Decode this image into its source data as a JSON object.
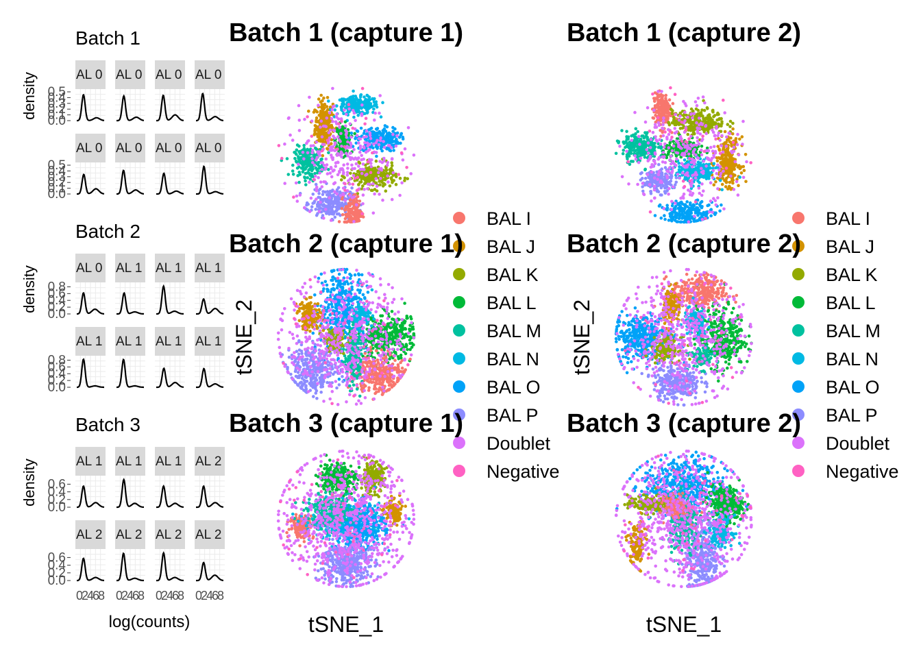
{
  "colors": {
    "BAL I": "#F8766D",
    "BAL J": "#D39200",
    "BAL K": "#93AA00",
    "BAL L": "#00BA38",
    "BAL M": "#00C19F",
    "BAL N": "#00B9E3",
    "BAL O": "#00A2F8",
    "BAL P": "#8C8CFF",
    "Doublet": "#DB72FB",
    "Negative": "#FF61C3"
  },
  "chart_data": [
    {
      "type": "line",
      "title": "Batch 1",
      "ylabel": "density",
      "xlabel": "",
      "panel_strips": [
        "AL 0",
        "AL 0",
        "AL 0",
        "AL 0",
        "AL 0",
        "AL 0",
        "AL 0",
        "AL 0"
      ],
      "y_ticks": [
        "0.0",
        "0.1",
        "0.2",
        "0.3",
        "0.4",
        "0.5"
      ],
      "x_ticks": [],
      "ylim": [
        0,
        0.5
      ],
      "xlim": [
        0,
        9
      ],
      "curves": [
        {
          "peak_x": 2.2,
          "peak_y": 0.45,
          "second_x": 6.5,
          "second_y": 0.05
        },
        {
          "peak_x": 2.4,
          "peak_y": 0.43,
          "second_x": 6.5,
          "second_y": 0.06
        },
        {
          "peak_x": 2.3,
          "peak_y": 0.44,
          "second_x": 6.2,
          "second_y": 0.1
        },
        {
          "peak_x": 2.2,
          "peak_y": 0.47,
          "second_x": 6.3,
          "second_y": 0.07
        },
        {
          "peak_x": 2.3,
          "peak_y": 0.34,
          "second_x": 6.3,
          "second_y": 0.09
        },
        {
          "peak_x": 2.3,
          "peak_y": 0.41,
          "second_x": 6.3,
          "second_y": 0.07
        },
        {
          "peak_x": 2.5,
          "peak_y": 0.36,
          "second_x": 6.6,
          "second_y": 0.05
        },
        {
          "peak_x": 2.6,
          "peak_y": 0.48,
          "second_x": 6.4,
          "second_y": 0.04
        }
      ]
    },
    {
      "type": "line",
      "title": "Batch 2",
      "ylabel": "density",
      "xlabel": "",
      "panel_strips": [
        "AL 0",
        "AL 1",
        "AL 1",
        "AL 1",
        "AL 1",
        "AL 1",
        "AL 1",
        "AL 1"
      ],
      "y_ticks": [
        "0.0",
        "0.2",
        "0.4",
        "0.6",
        "0.8"
      ],
      "x_ticks": [],
      "ylim": [
        0,
        0.85
      ],
      "xlim": [
        0,
        9
      ],
      "curves": [
        {
          "peak_x": 2.2,
          "peak_y": 0.62,
          "second_x": 6.0,
          "second_y": 0.14
        },
        {
          "peak_x": 2.5,
          "peak_y": 0.62,
          "second_x": 6.0,
          "second_y": 0.06
        },
        {
          "peak_x": 2.4,
          "peak_y": 0.82,
          "second_x": 6.0,
          "second_y": 0.08
        },
        {
          "peak_x": 2.5,
          "peak_y": 0.44,
          "second_x": 6.3,
          "second_y": 0.16
        },
        {
          "peak_x": 2.2,
          "peak_y": 0.83,
          "second_x": 6.0,
          "second_y": 0.04
        },
        {
          "peak_x": 2.3,
          "peak_y": 0.82,
          "second_x": 6.0,
          "second_y": 0.04
        },
        {
          "peak_x": 2.5,
          "peak_y": 0.56,
          "second_x": 6.2,
          "second_y": 0.14
        },
        {
          "peak_x": 2.6,
          "peak_y": 0.55,
          "second_x": 6.3,
          "second_y": 0.1
        }
      ]
    },
    {
      "type": "line",
      "title": "Batch 3",
      "ylabel": "density",
      "xlabel": "log(counts)",
      "panel_strips": [
        "AL 1",
        "AL 1",
        "AL 1",
        "AL 2",
        "AL 2",
        "AL 2",
        "AL 2",
        "AL 2"
      ],
      "y_ticks": [
        "0.0",
        "0.2",
        "0.4",
        "0.6"
      ],
      "x_ticks": [
        "0",
        "2",
        "4",
        "6",
        "8"
      ],
      "ylim": [
        0,
        0.75
      ],
      "xlim": [
        0,
        9
      ],
      "curves": [
        {
          "peak_x": 2.2,
          "peak_y": 0.55,
          "second_x": 6.2,
          "second_y": 0.12
        },
        {
          "peak_x": 2.4,
          "peak_y": 0.72,
          "second_x": 6.0,
          "second_y": 0.1
        },
        {
          "peak_x": 2.4,
          "peak_y": 0.55,
          "second_x": 6.2,
          "second_y": 0.1
        },
        {
          "peak_x": 2.5,
          "peak_y": 0.55,
          "second_x": 6.3,
          "second_y": 0.12
        },
        {
          "peak_x": 2.2,
          "peak_y": 0.58,
          "second_x": 6.2,
          "second_y": 0.08
        },
        {
          "peak_x": 2.3,
          "peak_y": 0.71,
          "second_x": 6.0,
          "second_y": 0.06
        },
        {
          "peak_x": 2.4,
          "peak_y": 0.72,
          "second_x": 6.1,
          "second_y": 0.08
        },
        {
          "peak_x": 2.5,
          "peak_y": 0.47,
          "second_x": 6.2,
          "second_y": 0.14
        }
      ]
    },
    {
      "type": "scatter",
      "title": "Batch 1 (capture 1)",
      "xlabel": "",
      "ylabel": "",
      "clusters": [
        {
          "group": "BAL J",
          "x": -15,
          "y": 20,
          "sx": 3,
          "sy": 8,
          "n": 260
        },
        {
          "group": "BAL N",
          "x": 8,
          "y": 33,
          "sx": 7,
          "sy": 3,
          "n": 220
        },
        {
          "group": "BAL L",
          "x": -2,
          "y": 10,
          "sx": 2.5,
          "sy": 5,
          "n": 160
        },
        {
          "group": "BAL O",
          "x": 22,
          "y": 10,
          "sx": 7,
          "sy": 4,
          "n": 240
        },
        {
          "group": "BAL M",
          "x": -25,
          "y": -5,
          "sx": 5,
          "sy": 5,
          "n": 220
        },
        {
          "group": "BAL K",
          "x": 18,
          "y": -15,
          "sx": 8,
          "sy": 4,
          "n": 240
        },
        {
          "group": "BAL P",
          "x": -10,
          "y": -33,
          "sx": 7,
          "sy": 5,
          "n": 220
        },
        {
          "group": "BAL I",
          "x": 5,
          "y": -40,
          "sx": 3,
          "sy": 6,
          "n": 160
        },
        {
          "group": "Doublet",
          "x": 0,
          "y": 0,
          "sx": 18,
          "sy": 18,
          "n": 320
        },
        {
          "group": "Negative",
          "x": 0,
          "y": 0,
          "sx": 22,
          "sy": 22,
          "n": 30
        }
      ]
    },
    {
      "type": "scatter",
      "title": "Batch 1 (capture 2)",
      "xlabel": "",
      "ylabel": "",
      "clusters": [
        {
          "group": "BAL I",
          "x": -15,
          "y": 30,
          "sx": 3,
          "sy": 6,
          "n": 180
        },
        {
          "group": "BAL K",
          "x": 10,
          "y": 22,
          "sx": 9,
          "sy": 4,
          "n": 260
        },
        {
          "group": "BAL M",
          "x": -30,
          "y": 5,
          "sx": 6,
          "sy": 5,
          "n": 240
        },
        {
          "group": "BAL L",
          "x": 0,
          "y": 3,
          "sx": 7,
          "sy": 3,
          "n": 180
        },
        {
          "group": "BAL J",
          "x": 30,
          "y": -5,
          "sx": 4,
          "sy": 8,
          "n": 240
        },
        {
          "group": "BAL N",
          "x": 8,
          "y": -12,
          "sx": 7,
          "sy": 4,
          "n": 220
        },
        {
          "group": "BAL P",
          "x": -18,
          "y": -18,
          "sx": 5,
          "sy": 4,
          "n": 180
        },
        {
          "group": "BAL O",
          "x": 3,
          "y": -40,
          "sx": 9,
          "sy": 4,
          "n": 220
        },
        {
          "group": "Doublet",
          "x": 0,
          "y": 0,
          "sx": 18,
          "sy": 18,
          "n": 320
        },
        {
          "group": "Negative",
          "x": 0,
          "y": 0,
          "sx": 22,
          "sy": 22,
          "n": 30
        }
      ]
    },
    {
      "type": "scatter",
      "title": "Batch 2 (capture 1)",
      "xlabel": "",
      "ylabel": "tSNE_2",
      "clusters": [
        {
          "group": "BAL O",
          "x": -2,
          "y": 18,
          "sx": 8,
          "sy": 14,
          "n": 420
        },
        {
          "group": "BAL L",
          "x": 28,
          "y": 0,
          "sx": 10,
          "sy": 7,
          "n": 360
        },
        {
          "group": "BAL J",
          "x": -25,
          "y": 15,
          "sx": 4,
          "sy": 5,
          "n": 140
        },
        {
          "group": "BAL P",
          "x": -22,
          "y": -22,
          "sx": 9,
          "sy": 8,
          "n": 320
        },
        {
          "group": "BAL I",
          "x": 22,
          "y": -25,
          "sx": 8,
          "sy": 7,
          "n": 300
        },
        {
          "group": "BAL M",
          "x": 5,
          "y": -12,
          "sx": 3,
          "sy": 10,
          "n": 220
        },
        {
          "group": "BAL N",
          "x": 10,
          "y": 15,
          "sx": 4,
          "sy": 4,
          "n": 100
        },
        {
          "group": "BAL K",
          "x": -8,
          "y": -2,
          "sx": 4,
          "sy": 4,
          "n": 100
        },
        {
          "group": "Doublet",
          "x": 0,
          "y": 0,
          "sx": 20,
          "sy": 20,
          "n": 500
        },
        {
          "group": "Negative",
          "x": 0,
          "y": 0,
          "sx": 22,
          "sy": 22,
          "n": 40
        }
      ]
    },
    {
      "type": "scatter",
      "title": "Batch 2 (capture 2)",
      "xlabel": "",
      "ylabel": "tSNE_2",
      "clusters": [
        {
          "group": "BAL I",
          "x": 10,
          "y": 30,
          "sx": 9,
          "sy": 6,
          "n": 300
        },
        {
          "group": "BAL O",
          "x": -28,
          "y": 0,
          "sx": 10,
          "sy": 8,
          "n": 380
        },
        {
          "group": "BAL L",
          "x": 25,
          "y": 0,
          "sx": 8,
          "sy": 10,
          "n": 340
        },
        {
          "group": "BAL P",
          "x": -5,
          "y": -30,
          "sx": 8,
          "sy": 6,
          "n": 280
        },
        {
          "group": "BAL J",
          "x": -8,
          "y": 20,
          "sx": 3,
          "sy": 6,
          "n": 140
        },
        {
          "group": "BAL N",
          "x": 8,
          "y": 10,
          "sx": 4,
          "sy": 5,
          "n": 140
        },
        {
          "group": "BAL K",
          "x": -12,
          "y": -8,
          "sx": 5,
          "sy": 4,
          "n": 140
        },
        {
          "group": "BAL M",
          "x": 12,
          "y": -14,
          "sx": 4,
          "sy": 4,
          "n": 100
        },
        {
          "group": "Doublet",
          "x": 0,
          "y": 0,
          "sx": 20,
          "sy": 20,
          "n": 500
        },
        {
          "group": "Negative",
          "x": 0,
          "y": 0,
          "sx": 22,
          "sy": 22,
          "n": 40
        }
      ]
    },
    {
      "type": "scatter",
      "title": "Batch 3 (capture 1)",
      "xlabel": "tSNE_1",
      "ylabel": "",
      "clusters": [
        {
          "group": "BAL L",
          "x": -6,
          "y": 28,
          "sx": 6,
          "sy": 5,
          "n": 280
        },
        {
          "group": "BAL K",
          "x": 18,
          "y": 28,
          "sx": 4,
          "sy": 5,
          "n": 200
        },
        {
          "group": "BAL I",
          "x": -30,
          "y": -5,
          "sx": 4,
          "sy": 4,
          "n": 140
        },
        {
          "group": "BAL N",
          "x": 0,
          "y": -2,
          "sx": 12,
          "sy": 6,
          "n": 380
        },
        {
          "group": "BAL O",
          "x": 10,
          "y": -5,
          "sx": 8,
          "sy": 8,
          "n": 360
        },
        {
          "group": "BAL M",
          "x": -10,
          "y": 5,
          "sx": 8,
          "sy": 5,
          "n": 260
        },
        {
          "group": "BAL P",
          "x": 0,
          "y": -30,
          "sx": 8,
          "sy": 8,
          "n": 360
        },
        {
          "group": "BAL J",
          "x": 32,
          "y": 5,
          "sx": 3,
          "sy": 4,
          "n": 120
        },
        {
          "group": "Doublet",
          "x": 0,
          "y": 0,
          "sx": 22,
          "sy": 22,
          "n": 700
        },
        {
          "group": "Negative",
          "x": 0,
          "y": 0,
          "sx": 22,
          "sy": 22,
          "n": 50
        }
      ]
    },
    {
      "type": "scatter",
      "title": "Batch 3 (capture 2)",
      "xlabel": "tSNE_1",
      "ylabel": "",
      "clusters": [
        {
          "group": "BAL O",
          "x": 0,
          "y": 22,
          "sx": 14,
          "sy": 10,
          "n": 480
        },
        {
          "group": "BAL L",
          "x": 28,
          "y": 10,
          "sx": 6,
          "sy": 6,
          "n": 300
        },
        {
          "group": "BAL K",
          "x": -22,
          "y": 10,
          "sx": 8,
          "sy": 3,
          "n": 200
        },
        {
          "group": "BAL P",
          "x": 12,
          "y": -25,
          "sx": 6,
          "sy": 12,
          "n": 340
        },
        {
          "group": "BAL M",
          "x": 0,
          "y": -5,
          "sx": 5,
          "sy": 10,
          "n": 240
        },
        {
          "group": "BAL N",
          "x": 25,
          "y": -8,
          "sx": 4,
          "sy": 5,
          "n": 160
        },
        {
          "group": "BAL J",
          "x": -32,
          "y": -18,
          "sx": 3,
          "sy": 8,
          "n": 120
        },
        {
          "group": "BAL I",
          "x": -5,
          "y": 8,
          "sx": 4,
          "sy": 4,
          "n": 120
        },
        {
          "group": "Doublet",
          "x": 0,
          "y": 0,
          "sx": 22,
          "sy": 22,
          "n": 650
        },
        {
          "group": "Negative",
          "x": 0,
          "y": 0,
          "sx": 22,
          "sy": 22,
          "n": 50
        }
      ]
    }
  ],
  "legends": [
    {
      "items": [
        "BAL I",
        "BAL J",
        "BAL K",
        "BAL L",
        "BAL M",
        "BAL N",
        "BAL O",
        "BAL P",
        "Doublet",
        "Negative"
      ]
    },
    {
      "items": [
        "BAL I",
        "BAL J",
        "BAL K",
        "BAL L",
        "BAL M",
        "BAL N",
        "BAL O",
        "BAL P",
        "Doublet",
        "Negative"
      ]
    }
  ]
}
